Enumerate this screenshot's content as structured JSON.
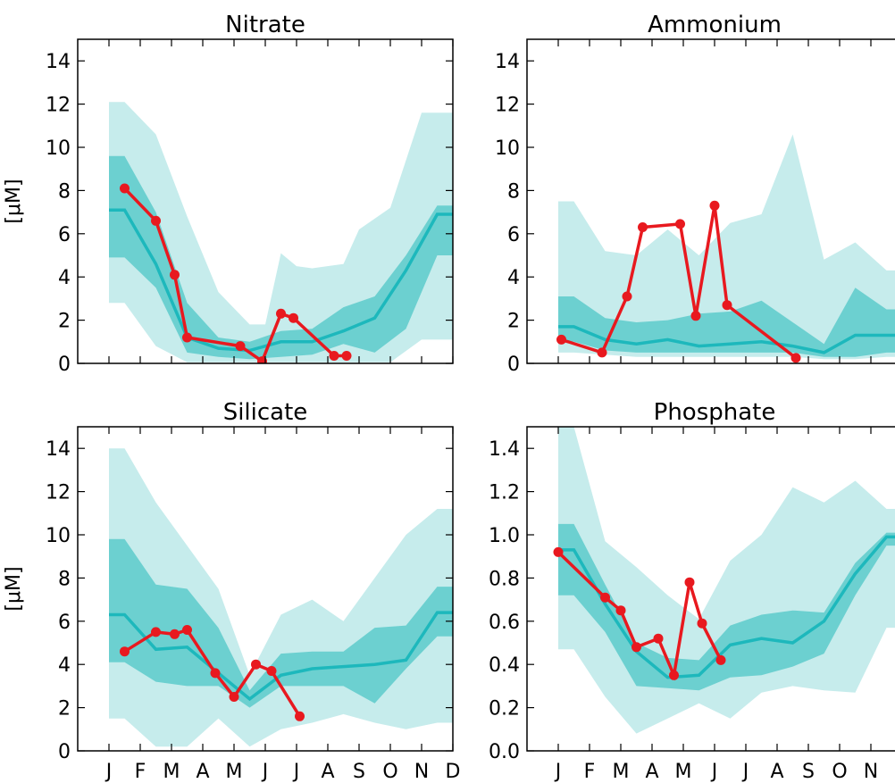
{
  "colors": {
    "outer_band": "#c6ecec",
    "inner_band": "#6cd0d0",
    "median_line": "#1db8bc",
    "observed": "#e8191f",
    "axis": "#000000"
  },
  "chart_data": [
    {
      "type": "line",
      "title": "Nitrate",
      "ylabel": "[μM]",
      "ylim": [
        0,
        15
      ],
      "yticks": [
        "0",
        "2",
        "4",
        "6",
        "8",
        "10",
        "12",
        "14"
      ],
      "ytick_values": [
        0,
        2,
        4,
        6,
        8,
        10,
        12,
        14
      ],
      "xlim": [
        0,
        12
      ],
      "months": [
        "J",
        "F",
        "M",
        "A",
        "M",
        "J",
        "J",
        "A",
        "S",
        "O",
        "N",
        "D"
      ],
      "show_xticklabels": false,
      "band_outer": {
        "x": [
          1,
          1.5,
          2.5,
          3.5,
          4.5,
          5.5,
          6,
          6.5,
          7,
          7.5,
          8.5,
          9,
          10,
          11,
          12
        ],
        "lower": [
          2.8,
          2.8,
          0.8,
          0.05,
          0.05,
          0.05,
          0.05,
          0.05,
          0.05,
          0.05,
          0.05,
          0.05,
          0.05,
          1.1,
          1.1
        ],
        "upper": [
          12.1,
          12.1,
          10.6,
          6.8,
          3.3,
          1.8,
          1.8,
          5.1,
          4.5,
          4.4,
          4.6,
          6.2,
          7.2,
          11.6,
          11.6
        ]
      },
      "band_inner": {
        "x": [
          1,
          1.5,
          2.5,
          3.5,
          4.5,
          5.5,
          6.5,
          7.5,
          8.5,
          9.5,
          10.5,
          11.5,
          12
        ],
        "lower": [
          4.9,
          4.9,
          3.5,
          0.5,
          0.3,
          0.2,
          0.3,
          0.4,
          0.9,
          0.5,
          1.6,
          5.0,
          5.0
        ],
        "upper": [
          9.6,
          9.6,
          7.0,
          2.8,
          1.2,
          1.0,
          1.5,
          1.6,
          2.6,
          3.1,
          5.0,
          7.3,
          7.3
        ]
      },
      "median": {
        "x": [
          1,
          1.5,
          2.5,
          3.5,
          4.5,
          5.5,
          6.5,
          7.5,
          8.5,
          9.5,
          10.5,
          11.5,
          12
        ],
        "y": [
          7.1,
          7.1,
          4.6,
          1.2,
          0.7,
          0.6,
          1.0,
          1.0,
          1.5,
          2.1,
          4.3,
          6.9,
          6.9
        ]
      },
      "observed": {
        "x": [
          1.5,
          2.5,
          3.1,
          3.5,
          5.2,
          5.9,
          6.5,
          6.9,
          8.2,
          8.6
        ],
        "y": [
          8.1,
          6.6,
          4.1,
          1.2,
          0.8,
          0.1,
          2.3,
          2.1,
          0.35,
          0.35
        ]
      }
    },
    {
      "type": "line",
      "title": "Ammonium",
      "ylabel": "",
      "ylim": [
        0,
        15
      ],
      "yticks": [
        "0",
        "2",
        "4",
        "6",
        "8",
        "10",
        "12",
        "14"
      ],
      "ytick_values": [
        0,
        2,
        4,
        6,
        8,
        10,
        12,
        14
      ],
      "xlim": [
        0,
        12
      ],
      "months": [
        "J",
        "F",
        "M",
        "A",
        "M",
        "J",
        "J",
        "A",
        "S",
        "O",
        "N",
        "D"
      ],
      "show_xticklabels": false,
      "band_outer": {
        "x": [
          1,
          1.5,
          2.5,
          3.5,
          4.5,
          5.5,
          6.5,
          7.5,
          8.5,
          9.5,
          10.5,
          11.5,
          12
        ],
        "lower": [
          0.5,
          0.5,
          0.4,
          0.3,
          0.3,
          0.3,
          0.3,
          0.3,
          0.3,
          0.2,
          0.2,
          0.3,
          0.3
        ],
        "upper": [
          7.5,
          7.5,
          5.2,
          5.0,
          6.2,
          5.0,
          6.5,
          6.9,
          10.6,
          4.8,
          5.6,
          4.3,
          4.3
        ]
      },
      "band_inner": {
        "x": [
          1,
          1.5,
          2.5,
          3.5,
          4.5,
          5.5,
          6.5,
          7.5,
          8.5,
          9.5,
          10.5,
          11.5,
          12
        ],
        "lower": [
          1.0,
          1.0,
          0.6,
          0.5,
          0.5,
          0.5,
          0.5,
          0.5,
          0.5,
          0.3,
          0.3,
          0.5,
          0.5
        ],
        "upper": [
          3.1,
          3.1,
          2.1,
          1.9,
          2.0,
          2.3,
          2.4,
          2.9,
          1.9,
          0.9,
          3.5,
          2.5,
          2.5
        ]
      },
      "median": {
        "x": [
          1,
          1.5,
          2.5,
          3.5,
          4.5,
          5.5,
          6.5,
          7.5,
          8.5,
          9.5,
          10.5,
          11.5,
          12
        ],
        "y": [
          1.7,
          1.7,
          1.1,
          0.9,
          1.1,
          0.8,
          0.9,
          1.0,
          0.8,
          0.5,
          1.3,
          1.3,
          1.3
        ]
      },
      "observed": {
        "x": [
          1.1,
          2.4,
          3.2,
          3.7,
          4.9,
          5.4,
          6.0,
          6.4,
          8.6
        ],
        "y": [
          1.1,
          0.5,
          3.1,
          6.3,
          6.45,
          2.2,
          7.3,
          2.7,
          0.25
        ]
      }
    },
    {
      "type": "line",
      "title": "Silicate",
      "ylabel": "[μM]",
      "ylim": [
        0,
        15
      ],
      "yticks": [
        "0",
        "2",
        "4",
        "6",
        "8",
        "10",
        "12",
        "14"
      ],
      "ytick_values": [
        0,
        2,
        4,
        6,
        8,
        10,
        12,
        14
      ],
      "xlim": [
        0,
        12
      ],
      "months": [
        "J",
        "F",
        "M",
        "A",
        "M",
        "J",
        "J",
        "A",
        "S",
        "O",
        "N",
        "D"
      ],
      "show_xticklabels": true,
      "band_outer": {
        "x": [
          1,
          1.5,
          2.5,
          3.5,
          4.5,
          5.5,
          6.5,
          7.5,
          8.5,
          9.5,
          10.5,
          11.5,
          12
        ],
        "lower": [
          1.5,
          1.5,
          0.2,
          0.2,
          1.5,
          0.2,
          1.0,
          1.3,
          1.7,
          1.3,
          1.0,
          1.3,
          1.3
        ],
        "upper": [
          14.0,
          14.0,
          11.5,
          9.5,
          7.5,
          3.5,
          6.3,
          7.0,
          6.0,
          8.0,
          10.0,
          11.2,
          11.2
        ]
      },
      "band_inner": {
        "x": [
          1,
          1.5,
          2.5,
          3.5,
          4.5,
          5.5,
          6.5,
          7.5,
          8.5,
          9.5,
          10.5,
          11.5,
          12
        ],
        "lower": [
          4.1,
          4.1,
          3.2,
          3.0,
          3.0,
          2.0,
          3.0,
          3.0,
          3.0,
          2.2,
          3.8,
          5.3,
          5.3
        ],
        "upper": [
          9.8,
          9.8,
          7.7,
          7.5,
          5.7,
          2.8,
          4.5,
          4.6,
          4.6,
          5.7,
          5.8,
          7.6,
          7.6
        ]
      },
      "median": {
        "x": [
          1,
          1.5,
          2.5,
          3.5,
          4.5,
          5.5,
          6.5,
          7.5,
          8.5,
          9.5,
          10.5,
          11.5,
          12
        ],
        "y": [
          6.3,
          6.3,
          4.7,
          4.8,
          3.6,
          2.4,
          3.5,
          3.8,
          3.9,
          4.0,
          4.2,
          6.4,
          6.4
        ]
      },
      "observed": {
        "x": [
          1.5,
          2.5,
          3.1,
          3.5,
          4.4,
          5.0,
          5.7,
          6.2,
          7.1
        ],
        "y": [
          4.6,
          5.5,
          5.4,
          5.6,
          3.6,
          2.5,
          4.0,
          3.7,
          1.6
        ]
      }
    },
    {
      "type": "line",
      "title": "Phosphate",
      "ylabel": "",
      "ylim": [
        0,
        1.5
      ],
      "yticks": [
        "0.0",
        "0.2",
        "0.4",
        "0.6",
        "0.8",
        "1.0",
        "1.2",
        "1.4"
      ],
      "ytick_values": [
        0,
        0.2,
        0.4,
        0.6,
        0.8,
        1.0,
        1.2,
        1.4
      ],
      "xlim": [
        0,
        12
      ],
      "months": [
        "J",
        "F",
        "M",
        "A",
        "M",
        "J",
        "J",
        "A",
        "S",
        "O",
        "N",
        "D"
      ],
      "show_xticklabels": true,
      "band_outer": {
        "x": [
          1,
          1.5,
          2.5,
          3.5,
          4.5,
          5.5,
          6.5,
          7.5,
          8.5,
          9.5,
          10.5,
          11.5,
          12
        ],
        "lower": [
          0.47,
          0.47,
          0.25,
          0.08,
          0.15,
          0.22,
          0.15,
          0.27,
          0.3,
          0.28,
          0.27,
          0.57,
          0.57
        ],
        "upper": [
          1.5,
          1.5,
          0.97,
          0.85,
          0.72,
          0.61,
          0.88,
          1.0,
          1.22,
          1.15,
          1.25,
          1.12,
          1.12
        ]
      },
      "band_inner": {
        "x": [
          1,
          1.5,
          2.5,
          3.5,
          4.5,
          5.5,
          6.5,
          7.5,
          8.5,
          9.5,
          10.5,
          11.5,
          12
        ],
        "lower": [
          0.72,
          0.72,
          0.55,
          0.3,
          0.29,
          0.28,
          0.34,
          0.35,
          0.39,
          0.45,
          0.72,
          0.95,
          0.95
        ],
        "upper": [
          1.05,
          1.05,
          0.77,
          0.5,
          0.43,
          0.42,
          0.58,
          0.63,
          0.65,
          0.64,
          0.87,
          1.01,
          1.01
        ]
      },
      "median": {
        "x": [
          1,
          1.5,
          2.5,
          3.5,
          4.5,
          5.5,
          6.5,
          7.5,
          8.5,
          9.5,
          10.5,
          11.5,
          12
        ],
        "y": [
          0.93,
          0.93,
          0.68,
          0.46,
          0.34,
          0.35,
          0.49,
          0.52,
          0.5,
          0.6,
          0.82,
          0.99,
          0.99
        ]
      },
      "observed": {
        "x": [
          1.0,
          2.5,
          3.0,
          3.5,
          4.2,
          4.7,
          5.2,
          5.6,
          6.2
        ],
        "y": [
          0.92,
          0.71,
          0.65,
          0.48,
          0.52,
          0.35,
          0.78,
          0.59,
          0.42
        ]
      }
    }
  ]
}
